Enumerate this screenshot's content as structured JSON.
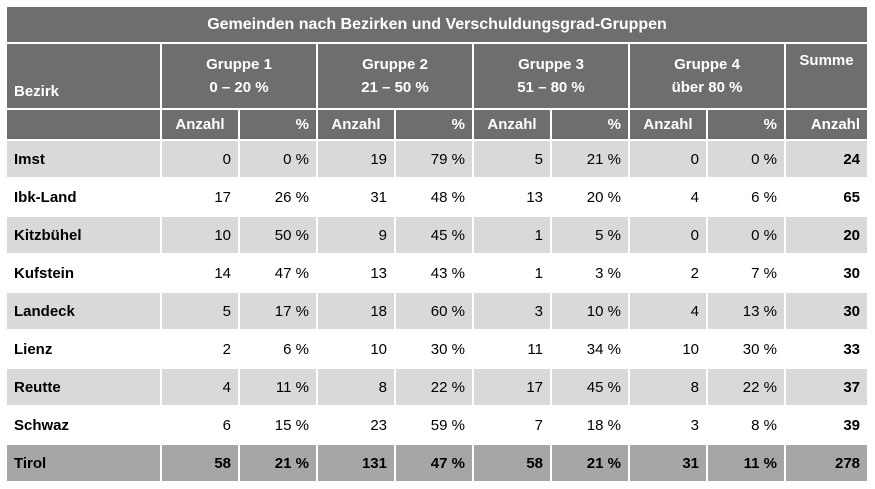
{
  "title": "Gemeinden nach Bezirken und Verschuldungsgrad-Gruppen",
  "header": {
    "bezirk": "Bezirk",
    "summe": "Summe",
    "groups": [
      {
        "name": "Gruppe 1",
        "range": "0 – 20 %"
      },
      {
        "name": "Gruppe 2",
        "range": "21 – 50 %"
      },
      {
        "name": "Gruppe 3",
        "range": "51 – 80 %"
      },
      {
        "name": "Gruppe 4",
        "range": "über 80 %"
      }
    ],
    "anzahl": "Anzahl",
    "pct": "%"
  },
  "rows": [
    {
      "name": "Imst",
      "g": [
        [
          "0",
          "0 %"
        ],
        [
          "19",
          "79 %"
        ],
        [
          "5",
          "21 %"
        ],
        [
          "0",
          "0 %"
        ]
      ],
      "sum": "24"
    },
    {
      "name": "Ibk-Land",
      "g": [
        [
          "17",
          "26 %"
        ],
        [
          "31",
          "48 %"
        ],
        [
          "13",
          "20 %"
        ],
        [
          "4",
          "6 %"
        ]
      ],
      "sum": "65"
    },
    {
      "name": "Kitzbühel",
      "g": [
        [
          "10",
          "50 %"
        ],
        [
          "9",
          "45 %"
        ],
        [
          "1",
          "5 %"
        ],
        [
          "0",
          "0 %"
        ]
      ],
      "sum": "20"
    },
    {
      "name": "Kufstein",
      "g": [
        [
          "14",
          "47 %"
        ],
        [
          "13",
          "43 %"
        ],
        [
          "1",
          "3 %"
        ],
        [
          "2",
          "7 %"
        ]
      ],
      "sum": "30"
    },
    {
      "name": "Landeck",
      "g": [
        [
          "5",
          "17 %"
        ],
        [
          "18",
          "60 %"
        ],
        [
          "3",
          "10 %"
        ],
        [
          "4",
          "13 %"
        ]
      ],
      "sum": "30"
    },
    {
      "name": "Lienz",
      "g": [
        [
          "2",
          "6 %"
        ],
        [
          "10",
          "30 %"
        ],
        [
          "11",
          "34 %"
        ],
        [
          "10",
          "30 %"
        ]
      ],
      "sum": "33"
    },
    {
      "name": "Reutte",
      "g": [
        [
          "4",
          "11 %"
        ],
        [
          "8",
          "22 %"
        ],
        [
          "17",
          "45 %"
        ],
        [
          "8",
          "22 %"
        ]
      ],
      "sum": "37"
    },
    {
      "name": "Schwaz",
      "g": [
        [
          "6",
          "15 %"
        ],
        [
          "23",
          "59 %"
        ],
        [
          "7",
          "18 %"
        ],
        [
          "3",
          "8 %"
        ]
      ],
      "sum": "39"
    }
  ],
  "total": {
    "name": "Tirol",
    "g": [
      [
        "58",
        "21 %"
      ],
      [
        "131",
        "47 %"
      ],
      [
        "58",
        "21 %"
      ],
      [
        "31",
        "11 %"
      ]
    ],
    "sum": "278"
  }
}
